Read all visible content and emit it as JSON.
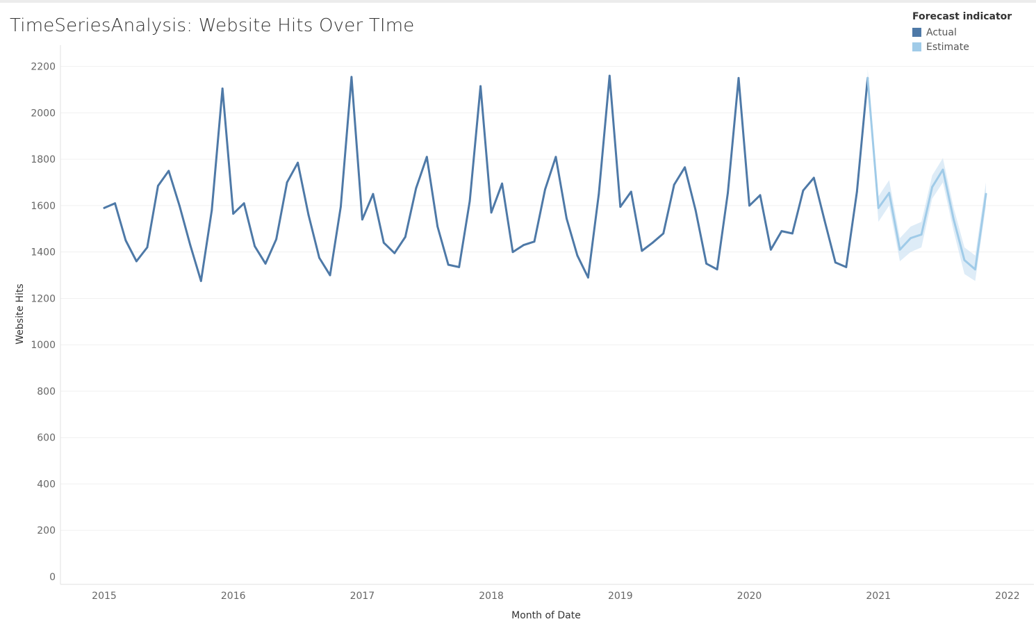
{
  "header": {
    "title": "TimeSeriesAnalysis: Website Hits Over TIme"
  },
  "legend": {
    "title": "Forecast indicator",
    "items": [
      {
        "label": "Actual",
        "color": "#4e79a7"
      },
      {
        "label": "Estimate",
        "color": "#a0cbe8"
      }
    ]
  },
  "chart_data": {
    "type": "line",
    "title": "TimeSeriesAnalysis: Website Hits Over TIme",
    "xlabel": "Month of Date",
    "ylabel": "Website Hits",
    "xlim": [
      "2015-01",
      "2022-01"
    ],
    "ylim": [
      0,
      2200
    ],
    "x_ticks": [
      "2015",
      "2016",
      "2017",
      "2018",
      "2019",
      "2020",
      "2021",
      "2022"
    ],
    "y_ticks": [
      0,
      200,
      400,
      600,
      800,
      1000,
      1200,
      1400,
      1600,
      1800,
      2000,
      2200
    ],
    "grid": true,
    "legend_position": "top-right",
    "series": [
      {
        "name": "Actual",
        "color": "#4e79a7",
        "x": [
          "2015-01",
          "2015-02",
          "2015-03",
          "2015-04",
          "2015-05",
          "2015-06",
          "2015-07",
          "2015-08",
          "2015-09",
          "2015-10",
          "2015-11",
          "2015-12",
          "2016-01",
          "2016-02",
          "2016-03",
          "2016-04",
          "2016-05",
          "2016-06",
          "2016-07",
          "2016-08",
          "2016-09",
          "2016-10",
          "2016-11",
          "2016-12",
          "2017-01",
          "2017-02",
          "2017-03",
          "2017-04",
          "2017-05",
          "2017-06",
          "2017-07",
          "2017-08",
          "2017-09",
          "2017-10",
          "2017-11",
          "2017-12",
          "2018-01",
          "2018-02",
          "2018-03",
          "2018-04",
          "2018-05",
          "2018-06",
          "2018-07",
          "2018-08",
          "2018-09",
          "2018-10",
          "2018-11",
          "2018-12",
          "2019-01",
          "2019-02",
          "2019-03",
          "2019-04",
          "2019-05",
          "2019-06",
          "2019-07",
          "2019-08",
          "2019-09",
          "2019-10",
          "2019-11",
          "2019-12",
          "2020-01",
          "2020-02",
          "2020-03",
          "2020-04",
          "2020-05",
          "2020-06",
          "2020-07",
          "2020-08",
          "2020-09",
          "2020-10",
          "2020-11",
          "2020-12"
        ],
        "values": [
          1590,
          1610,
          1450,
          1360,
          1420,
          1685,
          1750,
          1600,
          1430,
          1275,
          1580,
          2105,
          1565,
          1610,
          1425,
          1350,
          1455,
          1700,
          1785,
          1560,
          1375,
          1300,
          1595,
          2155,
          1540,
          1650,
          1440,
          1395,
          1465,
          1675,
          1810,
          1510,
          1345,
          1335,
          1620,
          2115,
          1570,
          1695,
          1400,
          1430,
          1445,
          1670,
          1810,
          1545,
          1385,
          1290,
          1650,
          2160,
          1595,
          1660,
          1405,
          1440,
          1480,
          1690,
          1765,
          1580,
          1350,
          1325,
          1655,
          2150,
          1600,
          1645,
          1410,
          1490,
          1480,
          1665,
          1720,
          1535,
          1355,
          1335,
          1660,
          2150
        ]
      },
      {
        "name": "Estimate",
        "color": "#a0cbe8",
        "band_color": "#d3e6f4",
        "x": [
          "2020-12",
          "2021-01",
          "2021-02",
          "2021-03",
          "2021-04",
          "2021-05",
          "2021-06",
          "2021-07",
          "2021-08",
          "2021-09",
          "2021-10",
          "2021-11"
        ],
        "values": [
          2150,
          1590,
          1655,
          1410,
          1460,
          1475,
          1680,
          1755,
          1540,
          1365,
          1325,
          1650
        ],
        "lower": [
          2150,
          1530,
          1600,
          1360,
          1400,
          1420,
          1630,
          1700,
          1490,
          1305,
          1275,
          1600
        ],
        "upper": [
          2190,
          1640,
          1710,
          1460,
          1510,
          1530,
          1730,
          1805,
          1590,
          1420,
          1385,
          1700
        ]
      }
    ]
  }
}
